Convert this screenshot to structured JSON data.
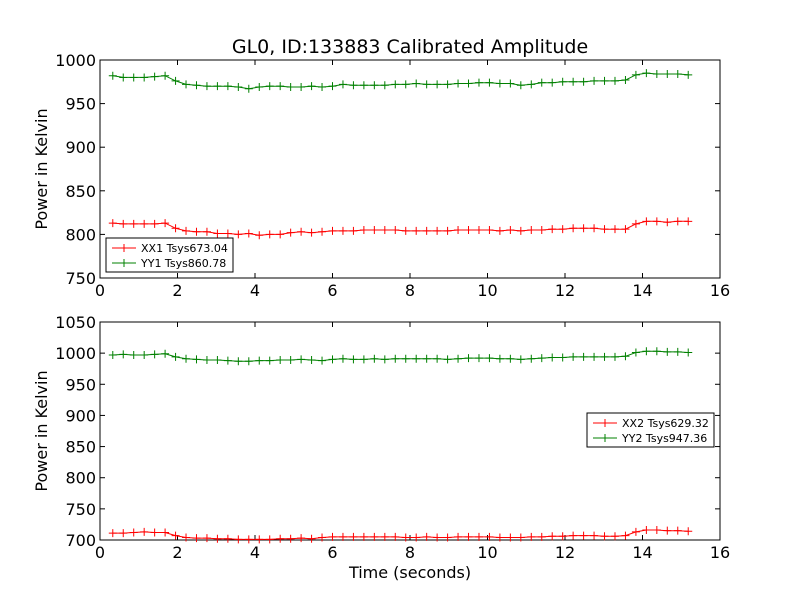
{
  "title": "GL0, ID:133883 Calibrated Amplitude",
  "xlabel": "Time (seconds)",
  "chart_data": [
    {
      "type": "line",
      "ylabel": "Power in Kelvin",
      "xlim": [
        0,
        16
      ],
      "ylim": [
        750,
        1000
      ],
      "x_ticks": [
        "0",
        "2",
        "4",
        "6",
        "8",
        "10",
        "12",
        "14",
        "16"
      ],
      "y_ticks": [
        "750",
        "800",
        "850",
        "900",
        "950",
        "1000"
      ],
      "legend_position": "lower-left",
      "series": [
        {
          "name": "XX1 Tsys673.04",
          "color": "#ff0000",
          "x": [
            0.33,
            0.6,
            0.87,
            1.14,
            1.41,
            1.68,
            1.95,
            2.22,
            2.49,
            2.76,
            3.03,
            3.3,
            3.57,
            3.84,
            4.11,
            4.38,
            4.65,
            4.92,
            5.19,
            5.46,
            5.73,
            6.0,
            6.27,
            6.54,
            6.81,
            7.08,
            7.35,
            7.62,
            7.89,
            8.16,
            8.43,
            8.7,
            8.97,
            9.24,
            9.51,
            9.78,
            10.05,
            10.32,
            10.59,
            10.86,
            11.13,
            11.4,
            11.67,
            11.94,
            12.21,
            12.48,
            12.75,
            13.02,
            13.29,
            13.56,
            13.83,
            14.1,
            14.37,
            14.64,
            14.91,
            15.18
          ],
          "y": [
            813,
            812,
            812,
            812,
            812,
            813,
            807,
            804,
            803,
            803,
            801,
            801,
            800,
            801,
            799,
            800,
            800,
            802,
            803,
            802,
            803,
            804,
            804,
            804,
            805,
            805,
            805,
            805,
            804,
            804,
            804,
            804,
            804,
            805,
            805,
            805,
            805,
            804,
            805,
            804,
            805,
            805,
            806,
            806,
            807,
            807,
            807,
            806,
            806,
            806,
            812,
            815,
            815,
            814,
            815,
            815
          ]
        },
        {
          "name": "YY1 Tsys860.78",
          "color": "#008000",
          "x": [
            0.33,
            0.6,
            0.87,
            1.14,
            1.41,
            1.68,
            1.95,
            2.22,
            2.49,
            2.76,
            3.03,
            3.3,
            3.57,
            3.84,
            4.11,
            4.38,
            4.65,
            4.92,
            5.19,
            5.46,
            5.73,
            6.0,
            6.27,
            6.54,
            6.81,
            7.08,
            7.35,
            7.62,
            7.89,
            8.16,
            8.43,
            8.7,
            8.97,
            9.24,
            9.51,
            9.78,
            10.05,
            10.32,
            10.59,
            10.86,
            11.13,
            11.4,
            11.67,
            11.94,
            12.21,
            12.48,
            12.75,
            13.02,
            13.29,
            13.56,
            13.83,
            14.1,
            14.37,
            14.64,
            14.91,
            15.18
          ],
          "y": [
            982,
            980,
            980,
            980,
            981,
            982,
            976,
            972,
            971,
            970,
            970,
            970,
            969,
            967,
            969,
            970,
            970,
            969,
            969,
            970,
            969,
            970,
            972,
            971,
            971,
            971,
            971,
            972,
            972,
            973,
            972,
            972,
            972,
            973,
            973,
            974,
            974,
            973,
            973,
            971,
            972,
            974,
            974,
            975,
            975,
            975,
            976,
            976,
            976,
            977,
            983,
            985,
            984,
            984,
            984,
            983
          ]
        }
      ]
    },
    {
      "type": "line",
      "ylabel": "Power in Kelvin",
      "xlim": [
        0,
        16
      ],
      "ylim": [
        700,
        1050
      ],
      "x_ticks": [
        "0",
        "2",
        "4",
        "6",
        "8",
        "10",
        "12",
        "14",
        "16"
      ],
      "y_ticks": [
        "700",
        "750",
        "800",
        "850",
        "900",
        "950",
        "1000",
        "1050"
      ],
      "legend_position": "center-right",
      "series": [
        {
          "name": "XX2 Tsys629.32",
          "color": "#ff0000",
          "x": [
            0.33,
            0.6,
            0.87,
            1.14,
            1.41,
            1.68,
            1.95,
            2.22,
            2.49,
            2.76,
            3.03,
            3.3,
            3.57,
            3.84,
            4.11,
            4.38,
            4.65,
            4.92,
            5.19,
            5.46,
            5.73,
            6.0,
            6.27,
            6.54,
            6.81,
            7.08,
            7.35,
            7.62,
            7.89,
            8.16,
            8.43,
            8.7,
            8.97,
            9.24,
            9.51,
            9.78,
            10.05,
            10.32,
            10.59,
            10.86,
            11.13,
            11.4,
            11.67,
            11.94,
            12.21,
            12.48,
            12.75,
            13.02,
            13.29,
            13.56,
            13.83,
            14.1,
            14.37,
            14.64,
            14.91,
            15.18
          ],
          "y": [
            711,
            711,
            712,
            713,
            712,
            712,
            707,
            704,
            703,
            703,
            702,
            702,
            701,
            701,
            701,
            701,
            702,
            702,
            703,
            702,
            704,
            705,
            705,
            705,
            705,
            705,
            705,
            705,
            704,
            704,
            705,
            704,
            704,
            705,
            705,
            705,
            705,
            704,
            704,
            704,
            705,
            705,
            706,
            706,
            707,
            707,
            707,
            706,
            706,
            707,
            713,
            716,
            716,
            715,
            715,
            714
          ]
        },
        {
          "name": "YY2 Tsys947.36",
          "color": "#008000",
          "x": [
            0.33,
            0.6,
            0.87,
            1.14,
            1.41,
            1.68,
            1.95,
            2.22,
            2.49,
            2.76,
            3.03,
            3.3,
            3.57,
            3.84,
            4.11,
            4.38,
            4.65,
            4.92,
            5.19,
            5.46,
            5.73,
            6.0,
            6.27,
            6.54,
            6.81,
            7.08,
            7.35,
            7.62,
            7.89,
            8.16,
            8.43,
            8.7,
            8.97,
            9.24,
            9.51,
            9.78,
            10.05,
            10.32,
            10.59,
            10.86,
            11.13,
            11.4,
            11.67,
            11.94,
            12.21,
            12.48,
            12.75,
            13.02,
            13.29,
            13.56,
            13.83,
            14.1,
            14.37,
            14.64,
            14.91,
            15.18
          ],
          "y": [
            997,
            998,
            997,
            997,
            998,
            999,
            994,
            991,
            990,
            989,
            989,
            988,
            987,
            987,
            988,
            988,
            989,
            989,
            990,
            989,
            988,
            990,
            991,
            990,
            990,
            991,
            990,
            991,
            991,
            991,
            991,
            991,
            990,
            991,
            992,
            992,
            992,
            991,
            991,
            990,
            991,
            992,
            993,
            993,
            994,
            994,
            994,
            994,
            994,
            995,
            1001,
            1003,
            1003,
            1002,
            1002,
            1001
          ]
        }
      ]
    }
  ]
}
